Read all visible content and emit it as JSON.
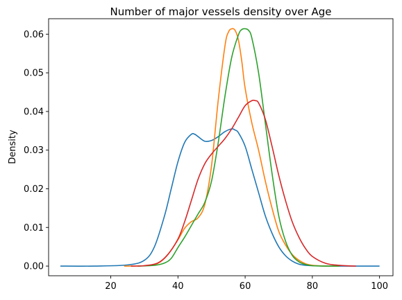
{
  "chart_data": {
    "type": "line",
    "title": "Number of major vessels density over Age",
    "xlabel": "",
    "ylabel": "Density",
    "xlim": [
      1.5,
      104
    ],
    "ylim": [
      -0.0025,
      0.064
    ],
    "x_ticks": [
      20,
      40,
      60,
      80,
      100
    ],
    "y_ticks": [
      0.0,
      0.01,
      0.02,
      0.03,
      0.04,
      0.05,
      0.06
    ],
    "y_tick_labels": [
      "0.00",
      "0.01",
      "0.02",
      "0.03",
      "0.04",
      "0.05",
      "0.06"
    ],
    "grid": false,
    "legend": null,
    "series": [
      {
        "color": "#1f77b4",
        "x": [
          5,
          15,
          25,
          30,
          33,
          36,
          38,
          40,
          42,
          44,
          45,
          46,
          48,
          50,
          52,
          54,
          56,
          57,
          58,
          60,
          62,
          64,
          66,
          68,
          70,
          72,
          74,
          76,
          78,
          80,
          85,
          90,
          95,
          100
        ],
        "y": [
          0.0,
          0.0,
          0.0003,
          0.0015,
          0.005,
          0.013,
          0.02,
          0.027,
          0.032,
          0.0341,
          0.0341,
          0.0335,
          0.0323,
          0.0325,
          0.0335,
          0.0348,
          0.0355,
          0.0352,
          0.0345,
          0.031,
          0.025,
          0.019,
          0.013,
          0.0085,
          0.005,
          0.0027,
          0.0013,
          0.0005,
          0.0002,
          0.0001,
          0.0,
          0.0,
          0.0,
          0.0
        ]
      },
      {
        "color": "#ff7f0e",
        "x": [
          24,
          30,
          34,
          37,
          40,
          42,
          44,
          46,
          48,
          50,
          52,
          54,
          55,
          56,
          57,
          58,
          59,
          60,
          62,
          64,
          66,
          68,
          70,
          72,
          74,
          76,
          78,
          80,
          84,
          88
        ],
        "y": [
          0.0,
          0.0001,
          0.0007,
          0.003,
          0.0068,
          0.0098,
          0.0115,
          0.0125,
          0.016,
          0.026,
          0.043,
          0.057,
          0.0605,
          0.0614,
          0.061,
          0.0585,
          0.053,
          0.046,
          0.037,
          0.03,
          0.022,
          0.015,
          0.009,
          0.0055,
          0.003,
          0.0015,
          0.0006,
          0.0002,
          0.0,
          0.0
        ]
      },
      {
        "color": "#2ca02c",
        "x": [
          28,
          33,
          36,
          38,
          40,
          42,
          44,
          46,
          48,
          50,
          52,
          54,
          56,
          58,
          59,
          60,
          61,
          62,
          64,
          66,
          68,
          70,
          72,
          74,
          76,
          78,
          80,
          84,
          88
        ],
        "y": [
          0.0,
          0.0002,
          0.0008,
          0.002,
          0.0048,
          0.0075,
          0.0105,
          0.0135,
          0.0165,
          0.022,
          0.032,
          0.044,
          0.054,
          0.0598,
          0.0612,
          0.0614,
          0.061,
          0.059,
          0.05,
          0.037,
          0.024,
          0.013,
          0.0065,
          0.0028,
          0.0011,
          0.0004,
          0.0001,
          0.0,
          0.0
        ]
      },
      {
        "color": "#d62728",
        "x": [
          26,
          30,
          34,
          37,
          40,
          42,
          44,
          46,
          48,
          50,
          52,
          54,
          56,
          58,
          60,
          62,
          63,
          64,
          66,
          68,
          70,
          72,
          74,
          76,
          78,
          80,
          84,
          88,
          93
        ],
        "y": [
          0.0,
          0.0001,
          0.0008,
          0.003,
          0.007,
          0.0115,
          0.017,
          0.0225,
          0.0265,
          0.029,
          0.031,
          0.033,
          0.0355,
          0.0385,
          0.0415,
          0.0428,
          0.0428,
          0.0422,
          0.038,
          0.031,
          0.0235,
          0.017,
          0.0115,
          0.0075,
          0.0045,
          0.0025,
          0.0007,
          0.0002,
          0.0
        ]
      }
    ]
  }
}
